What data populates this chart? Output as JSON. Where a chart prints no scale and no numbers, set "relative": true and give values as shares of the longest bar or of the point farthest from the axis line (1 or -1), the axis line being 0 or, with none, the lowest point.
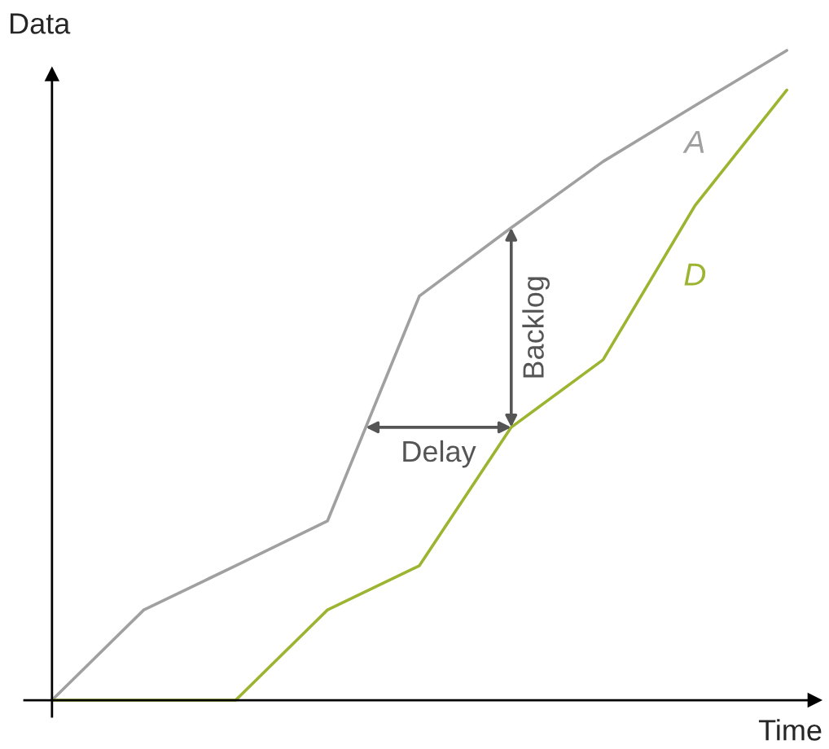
{
  "chart_data": {
    "type": "line",
    "relative": true,
    "xlabel": "Time",
    "ylabel": "Data",
    "categories": [
      null,
      null,
      null,
      null,
      null,
      null,
      null,
      null,
      null
    ],
    "series": [
      {
        "name": "A",
        "color": "#a0a0a0",
        "values": [
          0,
          0.139,
          0.207,
          0.276,
          0.622,
          0.727,
          0.829,
          0.915,
          1
        ]
      },
      {
        "name": "D",
        "color": "#9bb531",
        "values": [
          0,
          0,
          0,
          0.139,
          0.207,
          0.42,
          0.524,
          0.761,
          0.939
        ]
      }
    ],
    "annotations": [
      "Delay",
      "Backlog"
    ],
    "grid": false,
    "legend": false,
    "marker": "none",
    "line_style": "solid"
  }
}
